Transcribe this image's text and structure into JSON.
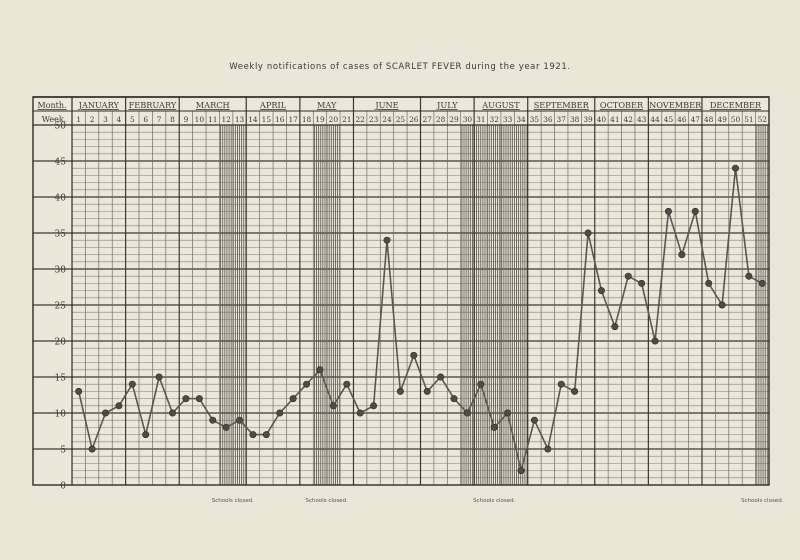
{
  "title": "Weekly notifications of cases of SCARLET FEVER during the year 1921.",
  "chart_data": {
    "type": "line",
    "title": "Weekly notifications of cases of SCARLET FEVER during the year 1921.",
    "row_labels": {
      "month": "Month.",
      "week": "Week."
    },
    "months": [
      {
        "name": "JANUARY",
        "weeks": 4
      },
      {
        "name": "FEBRUARY",
        "weeks": 4
      },
      {
        "name": "MARCH",
        "weeks": 5
      },
      {
        "name": "APRIL",
        "weeks": 4
      },
      {
        "name": "MAY",
        "weeks": 4
      },
      {
        "name": "JUNE",
        "weeks": 5
      },
      {
        "name": "JULY",
        "weeks": 4
      },
      {
        "name": "AUGUST",
        "weeks": 4
      },
      {
        "name": "SEPTEMBER",
        "weeks": 5
      },
      {
        "name": "OCTOBER",
        "weeks": 4
      },
      {
        "name": "NOVEMBER",
        "weeks": 4
      },
      {
        "name": "DECEMBER",
        "weeks": 5
      }
    ],
    "x": [
      1,
      2,
      3,
      4,
      5,
      6,
      7,
      8,
      9,
      10,
      11,
      12,
      13,
      14,
      15,
      16,
      17,
      18,
      19,
      20,
      21,
      22,
      23,
      24,
      25,
      26,
      27,
      28,
      29,
      30,
      31,
      32,
      33,
      34,
      35,
      36,
      37,
      38,
      39,
      40,
      41,
      42,
      43,
      44,
      45,
      46,
      47,
      48,
      49,
      50,
      51,
      52
    ],
    "values": [
      13,
      5,
      10,
      11,
      14,
      7,
      15,
      10,
      12,
      12,
      9,
      8,
      9,
      7,
      7,
      10,
      12,
      14,
      16,
      11,
      14,
      10,
      11,
      34,
      13,
      18,
      13,
      15,
      12,
      10,
      14,
      8,
      10,
      2,
      9,
      5,
      14,
      13,
      35,
      27,
      22,
      29,
      28,
      20,
      38,
      32,
      38,
      28,
      25,
      44,
      29,
      28
    ],
    "ylim": [
      0,
      50
    ],
    "yticks": [
      0,
      5,
      10,
      15,
      20,
      25,
      30,
      35,
      40,
      45,
      50
    ],
    "grid": true,
    "school_closures": [
      {
        "label": "Schools closed.",
        "weeks": [
          12,
          13
        ]
      },
      {
        "label": "Schools closed.",
        "weeks": [
          19,
          20
        ]
      },
      {
        "label": "Schools closed.",
        "weeks": [
          30,
          31,
          32,
          33,
          34
        ]
      },
      {
        "label": "Schools closed.",
        "weeks": [
          52
        ]
      }
    ],
    "colors": {
      "line": "#5a5750",
      "grid": "#6f6c64",
      "closure": "#54514a"
    }
  }
}
